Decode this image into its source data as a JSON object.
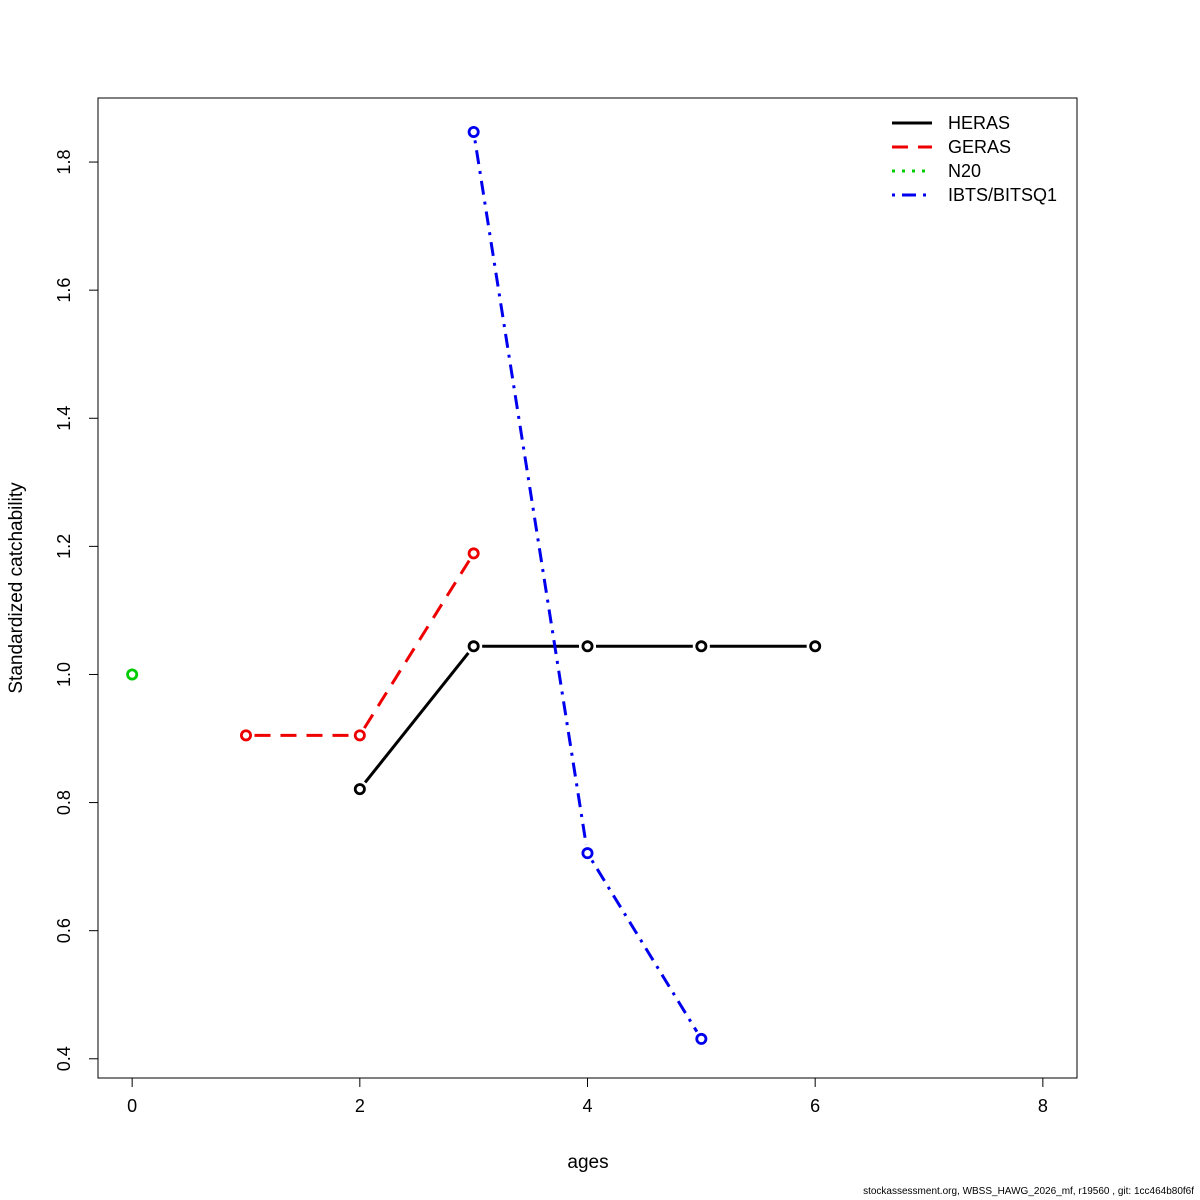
{
  "chart_data": {
    "type": "line",
    "xlabel": "ages",
    "ylabel": "Standardized catchability",
    "xlim": [
      -0.3,
      8.3
    ],
    "ylim": [
      0.37,
      1.9
    ],
    "xticks": [
      0,
      2,
      4,
      6,
      8
    ],
    "yticks": [
      0.4,
      0.6,
      0.8,
      1.0,
      1.2,
      1.4,
      1.6,
      1.8
    ],
    "xtick_labels": [
      "0",
      "2",
      "4",
      "6",
      "8"
    ],
    "ytick_labels": [
      "0.4",
      "0.6",
      "0.8",
      "1.0",
      "1.2",
      "1.4",
      "1.6",
      "1.8"
    ],
    "legend_position": "top-right",
    "grid": false,
    "series": [
      {
        "name": "HERAS",
        "color": "#000000",
        "dash": "solid",
        "x": [
          2,
          3,
          4,
          5,
          6
        ],
        "y": [
          0.821,
          1.044,
          1.044,
          1.044,
          1.044
        ]
      },
      {
        "name": "GERAS",
        "color": "#ee0000",
        "dash": "dashed",
        "x": [
          1,
          2,
          3
        ],
        "y": [
          0.905,
          0.905,
          1.189
        ]
      },
      {
        "name": "N20",
        "color": "#00cc00",
        "dash": "dotted",
        "x": [
          0
        ],
        "y": [
          1.0
        ]
      },
      {
        "name": "IBTS/BITSQ1",
        "color": "#0000ee",
        "dash": "dotdash",
        "x": [
          3,
          4,
          5
        ],
        "y": [
          1.847,
          0.721,
          0.431
        ]
      }
    ]
  },
  "footer": "stockassessment.org, WBSS_HAWG_2026_mf, r19560 , git: 1cc464b80f6f"
}
